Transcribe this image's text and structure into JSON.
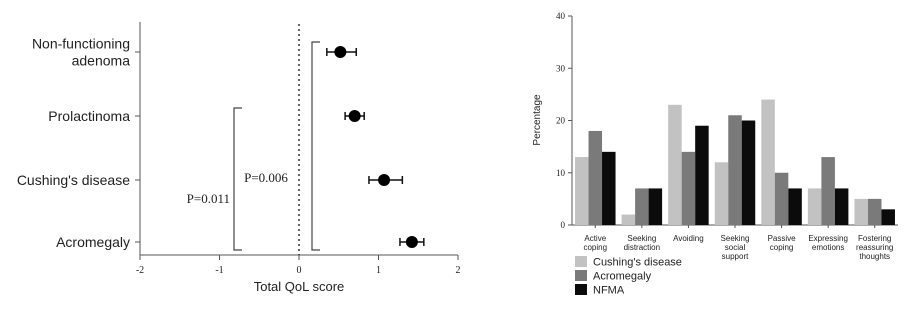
{
  "chart_data": [
    {
      "type": "scatter",
      "subtype": "forest-plot",
      "title": "",
      "xlabel": "Total QoL score",
      "ylabel": "",
      "xlim": [
        -2,
        2
      ],
      "xticks": [
        "-2",
        "-1",
        "0",
        "1",
        "2"
      ],
      "grid": false,
      "reference_line": 0,
      "categories": [
        [
          "Non-functioning",
          "adenoma"
        ],
        [
          "Prolactinoma"
        ],
        [
          "Cushing's disease"
        ],
        [
          "Acromegaly"
        ]
      ],
      "points": [
        {
          "estimate": 0.52,
          "lower": 0.35,
          "upper": 0.72
        },
        {
          "estimate": 0.7,
          "lower": 0.58,
          "upper": 0.82
        },
        {
          "estimate": 1.07,
          "lower": 0.88,
          "upper": 1.3
        },
        {
          "estimate": 1.42,
          "lower": 1.27,
          "upper": 1.57
        }
      ],
      "annotations": [
        {
          "text": "P=0.011",
          "from": "Prolactinoma",
          "to": "Acromegaly"
        },
        {
          "text": "P=0.006",
          "from": "Non-functioning adenoma",
          "to": "Acromegaly"
        }
      ]
    },
    {
      "type": "bar",
      "title": "",
      "xlabel": "",
      "ylabel": "Percentage",
      "ylim": [
        0,
        40
      ],
      "yticks": [
        "0",
        "10",
        "20",
        "30",
        "40"
      ],
      "grid": false,
      "legend_position": "bottom-left",
      "categories": [
        [
          "Active",
          "coping"
        ],
        [
          "Seeking",
          "distraction"
        ],
        [
          "Avoiding"
        ],
        [
          "Seeking",
          "social",
          "support"
        ],
        [
          "Passive",
          "coping"
        ],
        [
          "Expressing",
          "emotions"
        ],
        [
          "Fostering",
          "reassuring",
          "thoughts"
        ]
      ],
      "series": [
        {
          "name": "Cushing's disease",
          "color": "#c2c2c2",
          "values": [
            13,
            2,
            23,
            12,
            24,
            7,
            5
          ]
        },
        {
          "name": "Acromegaly",
          "color": "#7a7a7a",
          "values": [
            18,
            7,
            14,
            21,
            10,
            13,
            5
          ]
        },
        {
          "name": "NFMA",
          "color": "#0b0b0b",
          "values": [
            14,
            7,
            19,
            20,
            7,
            7,
            3
          ]
        }
      ]
    }
  ]
}
